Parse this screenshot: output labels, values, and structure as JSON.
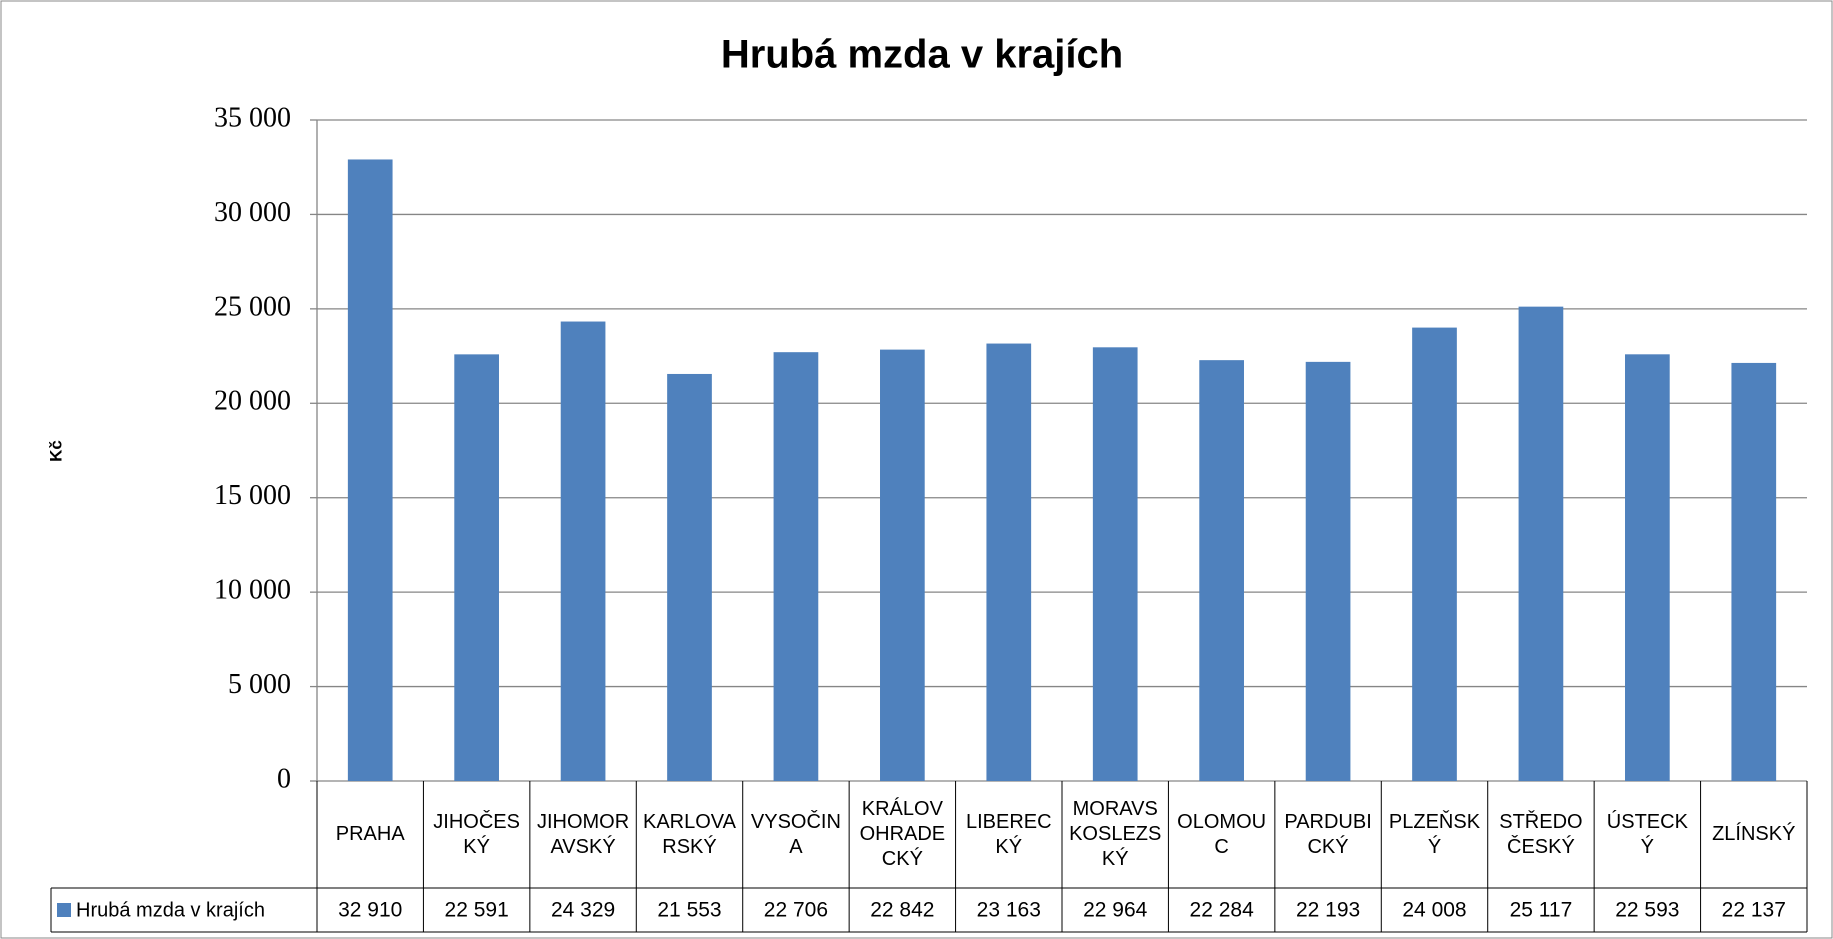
{
  "chart_data": {
    "type": "bar",
    "title": "Hrubá mzda v krajích",
    "y_label": "Kč",
    "categories": [
      "PRAHA",
      "JIHOČESKÝ",
      "JIHOMORAVSKÝ",
      "KARLOVARSKÝ",
      "VYSOČINA",
      "KRÁLOVOHRADECKÝ",
      "LIBERECKÝ",
      "MORAVSKOSLEZSKÝ",
      "OLOMOUC",
      "PARDUBICKÝ",
      "PLZEŇSKÝ",
      "STŘEDOČESKÝ",
      "ÚSTECKÝ",
      "ZLÍNSKÝ"
    ],
    "series": [
      {
        "name": "Hrubá mzda v krajích",
        "color": "#4f81bd",
        "values": [
          32910,
          22591,
          24329,
          21553,
          22706,
          22842,
          23163,
          22964,
          22284,
          22193,
          24008,
          25117,
          22593,
          22137
        ],
        "value_labels": [
          "32 910",
          "22 591",
          "24 329",
          "21 553",
          "22 706",
          "22 842",
          "23 163",
          "22 964",
          "22 284",
          "22 193",
          "24 008",
          "25 117",
          "22 593",
          "22 137"
        ]
      }
    ],
    "ylim": [
      0,
      35000
    ],
    "yticks": [
      0,
      {
        "value": 5000,
        "label": "5 000"
      },
      {
        "value": 10000,
        "label": "10 000"
      },
      {
        "value": 15000,
        "label": "15 000"
      },
      {
        "value": 20000,
        "label": "20 000"
      },
      {
        "value": 25000,
        "label": "25 000"
      },
      {
        "value": 30000,
        "label": "30 000"
      },
      {
        "value": 35000,
        "label": "35 000"
      }
    ],
    "grid": true
  }
}
